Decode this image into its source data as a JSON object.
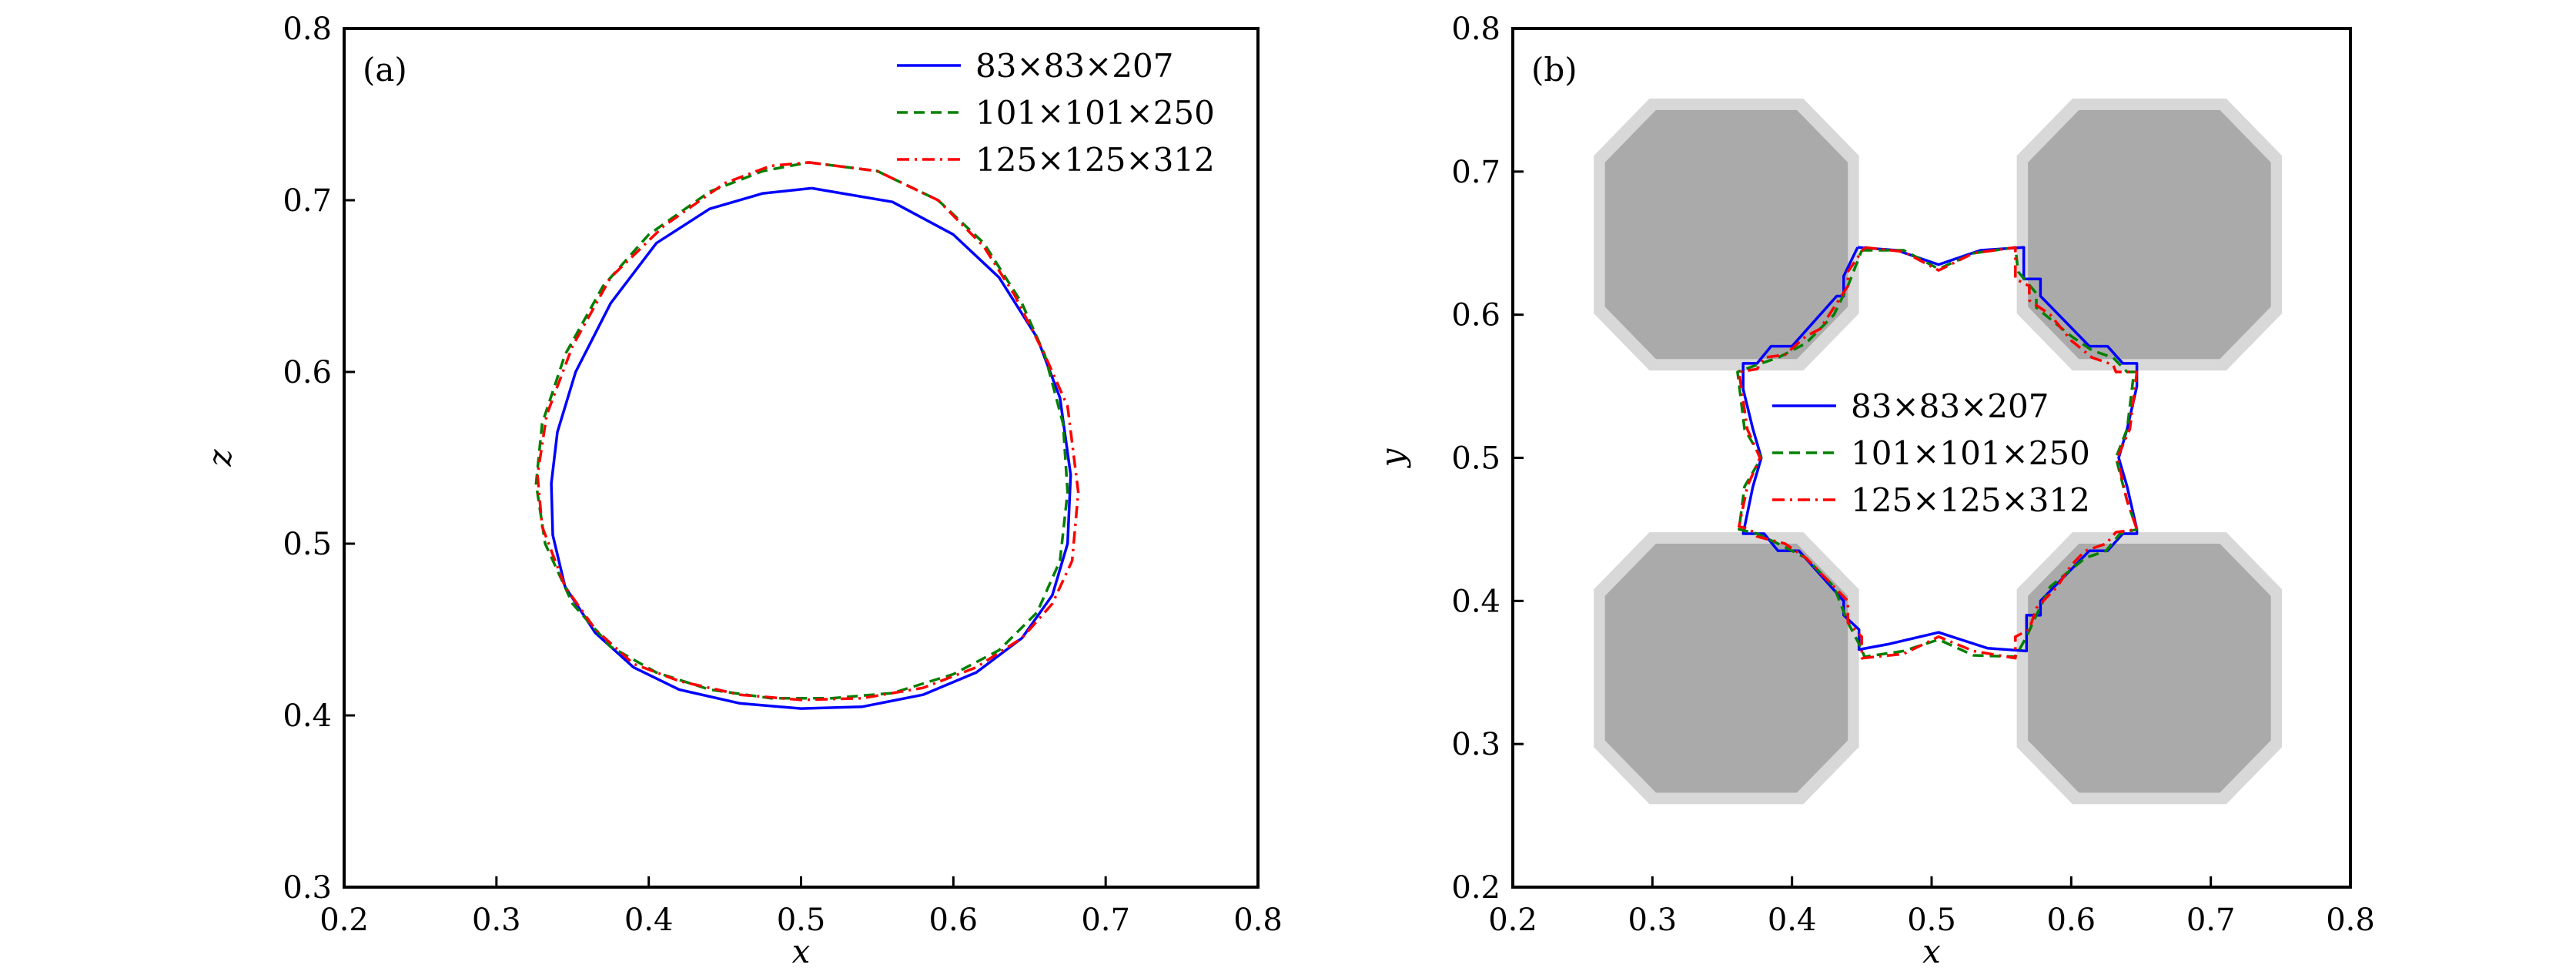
{
  "chart_data": [
    {
      "type": "line",
      "panel_label": "(a)",
      "xlabel": "x",
      "ylabel": "z",
      "xlim": [
        0.2,
        0.8
      ],
      "ylim": [
        0.3,
        0.8
      ],
      "xticks": [
        "0.2",
        "0.3",
        "0.4",
        "0.5",
        "0.6",
        "0.7",
        "0.8"
      ],
      "yticks": [
        "0.3",
        "0.4",
        "0.5",
        "0.6",
        "0.7",
        "0.8"
      ],
      "legend_position": "top-right",
      "series": [
        {
          "name": "83×83×207",
          "color": "#0000ff",
          "style": "solid",
          "points": [
            [
              0.507,
              0.707
            ],
            [
              0.56,
              0.699
            ],
            [
              0.6,
              0.68
            ],
            [
              0.63,
              0.655
            ],
            [
              0.655,
              0.62
            ],
            [
              0.67,
              0.585
            ],
            [
              0.677,
              0.54
            ],
            [
              0.675,
              0.5
            ],
            [
              0.665,
              0.47
            ],
            [
              0.645,
              0.445
            ],
            [
              0.615,
              0.425
            ],
            [
              0.58,
              0.412
            ],
            [
              0.54,
              0.405
            ],
            [
              0.5,
              0.404
            ],
            [
              0.46,
              0.407
            ],
            [
              0.42,
              0.415
            ],
            [
              0.39,
              0.428
            ],
            [
              0.365,
              0.448
            ],
            [
              0.345,
              0.475
            ],
            [
              0.337,
              0.505
            ],
            [
              0.336,
              0.535
            ],
            [
              0.34,
              0.565
            ],
            [
              0.352,
              0.6
            ],
            [
              0.375,
              0.64
            ],
            [
              0.405,
              0.675
            ],
            [
              0.44,
              0.695
            ],
            [
              0.475,
              0.704
            ],
            [
              0.507,
              0.707
            ]
          ]
        },
        {
          "name": "101×101×250",
          "color": "#008000",
          "style": "dashed",
          "points": [
            [
              0.505,
              0.722
            ],
            [
              0.55,
              0.717
            ],
            [
              0.59,
              0.7
            ],
            [
              0.62,
              0.675
            ],
            [
              0.645,
              0.64
            ],
            [
              0.66,
              0.61
            ],
            [
              0.672,
              0.57
            ],
            [
              0.675,
              0.53
            ],
            [
              0.67,
              0.49
            ],
            [
              0.655,
              0.46
            ],
            [
              0.63,
              0.438
            ],
            [
              0.6,
              0.424
            ],
            [
              0.56,
              0.413
            ],
            [
              0.52,
              0.41
            ],
            [
              0.48,
              0.41
            ],
            [
              0.44,
              0.415
            ],
            [
              0.405,
              0.425
            ],
            [
              0.375,
              0.44
            ],
            [
              0.35,
              0.465
            ],
            [
              0.332,
              0.5
            ],
            [
              0.326,
              0.535
            ],
            [
              0.33,
              0.57
            ],
            [
              0.345,
              0.61
            ],
            [
              0.37,
              0.65
            ],
            [
              0.4,
              0.68
            ],
            [
              0.44,
              0.705
            ],
            [
              0.475,
              0.717
            ],
            [
              0.505,
              0.722
            ]
          ]
        },
        {
          "name": "125×125×312",
          "color": "#ff0000",
          "style": "dashdot",
          "points": [
            [
              0.505,
              0.722
            ],
            [
              0.55,
              0.717
            ],
            [
              0.59,
              0.7
            ],
            [
              0.62,
              0.673
            ],
            [
              0.64,
              0.645
            ],
            [
              0.66,
              0.61
            ],
            [
              0.675,
              0.58
            ],
            [
              0.682,
              0.53
            ],
            [
              0.678,
              0.49
            ],
            [
              0.665,
              0.465
            ],
            [
              0.645,
              0.445
            ],
            [
              0.615,
              0.428
            ],
            [
              0.58,
              0.416
            ],
            [
              0.54,
              0.41
            ],
            [
              0.5,
              0.409
            ],
            [
              0.46,
              0.412
            ],
            [
              0.42,
              0.42
            ],
            [
              0.39,
              0.43
            ],
            [
              0.365,
              0.45
            ],
            [
              0.345,
              0.475
            ],
            [
              0.33,
              0.51
            ],
            [
              0.327,
              0.54
            ],
            [
              0.333,
              0.575
            ],
            [
              0.35,
              0.615
            ],
            [
              0.375,
              0.655
            ],
            [
              0.41,
              0.685
            ],
            [
              0.45,
              0.71
            ],
            [
              0.48,
              0.72
            ],
            [
              0.505,
              0.722
            ]
          ]
        }
      ]
    },
    {
      "type": "line",
      "panel_label": "(b)",
      "xlabel": "x",
      "ylabel": "y",
      "xlim": [
        0.2,
        0.8
      ],
      "ylim": [
        0.2,
        0.8
      ],
      "xticks": [
        "0.2",
        "0.3",
        "0.4",
        "0.5",
        "0.6",
        "0.7",
        "0.8"
      ],
      "yticks": [
        "0.2",
        "0.3",
        "0.4",
        "0.5",
        "0.6",
        "0.7",
        "0.8"
      ],
      "legend_position": "center",
      "obstacles": {
        "color_core": "#aaaaaa",
        "color_halo": "#d8d8d8",
        "half_width_halo": 0.095,
        "half_width_core": 0.087,
        "centers": [
          [
            0.353,
            0.656
          ],
          [
            0.656,
            0.656
          ],
          [
            0.353,
            0.353
          ],
          [
            0.656,
            0.353
          ]
        ]
      },
      "series": [
        {
          "name": "83×83×207",
          "color": "#0000ff",
          "style": "solid",
          "points": [
            [
              0.447,
              0.647
            ],
            [
              0.475,
              0.645
            ],
            [
              0.505,
              0.635
            ],
            [
              0.535,
              0.645
            ],
            [
              0.566,
              0.647
            ],
            [
              0.566,
              0.625
            ],
            [
              0.578,
              0.625
            ],
            [
              0.578,
              0.613
            ],
            [
              0.613,
              0.578
            ],
            [
              0.626,
              0.578
            ],
            [
              0.637,
              0.566
            ],
            [
              0.647,
              0.566
            ],
            [
              0.647,
              0.55
            ],
            [
              0.64,
              0.52
            ],
            [
              0.634,
              0.5
            ],
            [
              0.64,
              0.48
            ],
            [
              0.647,
              0.45
            ],
            [
              0.647,
              0.447
            ],
            [
              0.637,
              0.447
            ],
            [
              0.626,
              0.435
            ],
            [
              0.613,
              0.435
            ],
            [
              0.578,
              0.4
            ],
            [
              0.578,
              0.39
            ],
            [
              0.568,
              0.39
            ],
            [
              0.568,
              0.365
            ],
            [
              0.54,
              0.367
            ],
            [
              0.505,
              0.378
            ],
            [
              0.47,
              0.37
            ],
            [
              0.448,
              0.366
            ],
            [
              0.448,
              0.38
            ],
            [
              0.437,
              0.39
            ],
            [
              0.437,
              0.4
            ],
            [
              0.405,
              0.435
            ],
            [
              0.39,
              0.435
            ],
            [
              0.38,
              0.447
            ],
            [
              0.365,
              0.447
            ],
            [
              0.372,
              0.48
            ],
            [
              0.378,
              0.5
            ],
            [
              0.372,
              0.52
            ],
            [
              0.365,
              0.548
            ],
            [
              0.365,
              0.566
            ],
            [
              0.375,
              0.566
            ],
            [
              0.385,
              0.578
            ],
            [
              0.4,
              0.578
            ],
            [
              0.432,
              0.613
            ],
            [
              0.437,
              0.613
            ],
            [
              0.437,
              0.627
            ],
            [
              0.447,
              0.647
            ]
          ]
        },
        {
          "name": "101×101×250",
          "color": "#008000",
          "style": "dashed",
          "points": [
            [
              0.45,
              0.645
            ],
            [
              0.48,
              0.645
            ],
            [
              0.505,
              0.632
            ],
            [
              0.53,
              0.643
            ],
            [
              0.56,
              0.647
            ],
            [
              0.562,
              0.63
            ],
            [
              0.575,
              0.615
            ],
            [
              0.575,
              0.605
            ],
            [
              0.6,
              0.585
            ],
            [
              0.615,
              0.575
            ],
            [
              0.63,
              0.57
            ],
            [
              0.64,
              0.56
            ],
            [
              0.645,
              0.56
            ],
            [
              0.64,
              0.52
            ],
            [
              0.632,
              0.5
            ],
            [
              0.64,
              0.47
            ],
            [
              0.647,
              0.45
            ],
            [
              0.635,
              0.447
            ],
            [
              0.625,
              0.435
            ],
            [
              0.61,
              0.43
            ],
            [
              0.585,
              0.41
            ],
            [
              0.575,
              0.39
            ],
            [
              0.568,
              0.375
            ],
            [
              0.56,
              0.361
            ],
            [
              0.53,
              0.362
            ],
            [
              0.505,
              0.373
            ],
            [
              0.48,
              0.365
            ],
            [
              0.452,
              0.361
            ],
            [
              0.448,
              0.37
            ],
            [
              0.44,
              0.385
            ],
            [
              0.43,
              0.41
            ],
            [
              0.41,
              0.43
            ],
            [
              0.39,
              0.44
            ],
            [
              0.375,
              0.447
            ],
            [
              0.362,
              0.45
            ],
            [
              0.366,
              0.48
            ],
            [
              0.378,
              0.5
            ],
            [
              0.366,
              0.52
            ],
            [
              0.361,
              0.56
            ],
            [
              0.375,
              0.565
            ],
            [
              0.39,
              0.57
            ],
            [
              0.41,
              0.58
            ],
            [
              0.43,
              0.6
            ],
            [
              0.44,
              0.62
            ],
            [
              0.45,
              0.645
            ]
          ]
        },
        {
          "name": "125×125×312",
          "color": "#ff0000",
          "style": "dashdot",
          "points": [
            [
              0.452,
              0.647
            ],
            [
              0.48,
              0.644
            ],
            [
              0.505,
              0.631
            ],
            [
              0.53,
              0.643
            ],
            [
              0.56,
              0.647
            ],
            [
              0.56,
              0.625
            ],
            [
              0.57,
              0.62
            ],
            [
              0.57,
              0.61
            ],
            [
              0.585,
              0.6
            ],
            [
              0.6,
              0.582
            ],
            [
              0.615,
              0.57
            ],
            [
              0.63,
              0.565
            ],
            [
              0.632,
              0.56
            ],
            [
              0.647,
              0.56
            ],
            [
              0.642,
              0.52
            ],
            [
              0.633,
              0.5
            ],
            [
              0.64,
              0.47
            ],
            [
              0.647,
              0.45
            ],
            [
              0.632,
              0.448
            ],
            [
              0.625,
              0.44
            ],
            [
              0.61,
              0.435
            ],
            [
              0.6,
              0.425
            ],
            [
              0.59,
              0.41
            ],
            [
              0.575,
              0.395
            ],
            [
              0.57,
              0.38
            ],
            [
              0.56,
              0.375
            ],
            [
              0.56,
              0.36
            ],
            [
              0.53,
              0.365
            ],
            [
              0.505,
              0.375
            ],
            [
              0.48,
              0.363
            ],
            [
              0.45,
              0.36
            ],
            [
              0.45,
              0.375
            ],
            [
              0.44,
              0.385
            ],
            [
              0.44,
              0.4
            ],
            [
              0.425,
              0.415
            ],
            [
              0.41,
              0.43
            ],
            [
              0.395,
              0.44
            ],
            [
              0.375,
              0.445
            ],
            [
              0.37,
              0.45
            ],
            [
              0.362,
              0.452
            ],
            [
              0.368,
              0.48
            ],
            [
              0.377,
              0.5
            ],
            [
              0.368,
              0.52
            ],
            [
              0.362,
              0.56
            ],
            [
              0.375,
              0.562
            ],
            [
              0.38,
              0.57
            ],
            [
              0.395,
              0.572
            ],
            [
              0.41,
              0.585
            ],
            [
              0.42,
              0.59
            ],
            [
              0.43,
              0.605
            ],
            [
              0.44,
              0.62
            ],
            [
              0.44,
              0.63
            ],
            [
              0.452,
              0.647
            ]
          ]
        }
      ]
    }
  ]
}
